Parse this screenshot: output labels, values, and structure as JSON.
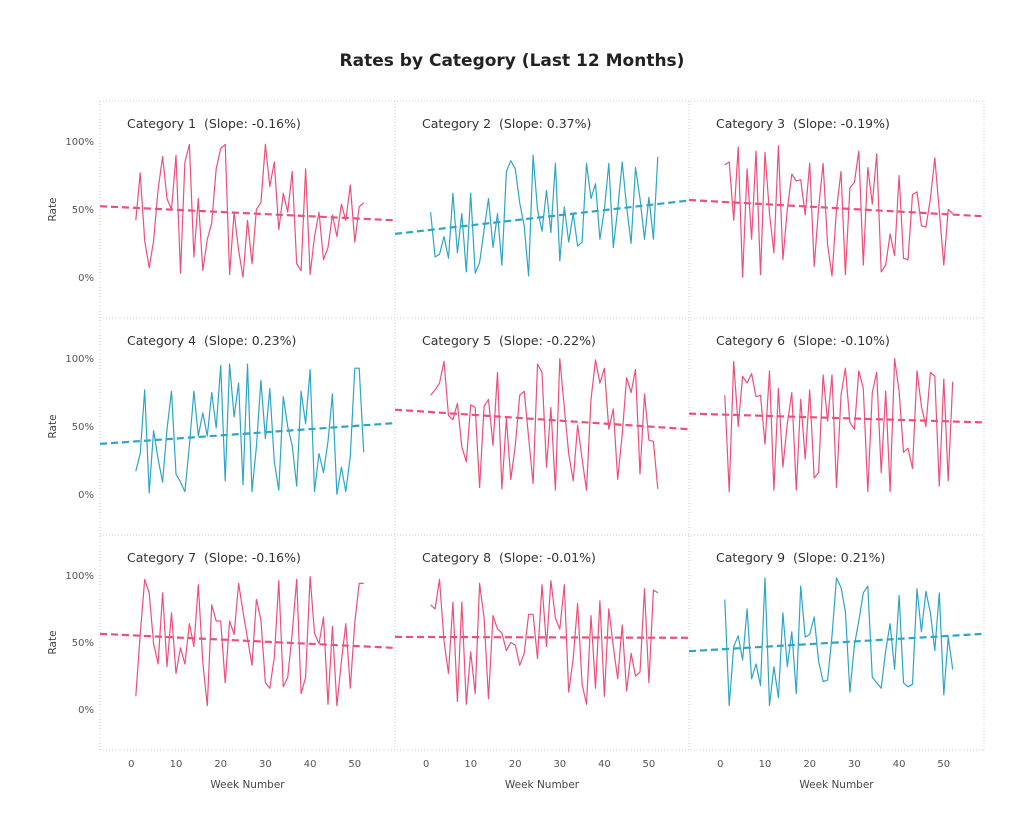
{
  "colors": {
    "negative": "#ee4f79",
    "positive": "#2ba6c8",
    "grid": "#cfcfcf"
  },
  "chart_data": {
    "type": "line",
    "title": "Rates by Category (Last 12 Months)",
    "xlabel": "Week Number",
    "ylabel": "Rate",
    "xlim": [
      -7,
      59
    ],
    "ylim": [
      -30,
      130
    ],
    "x_ticks": [
      0,
      10,
      20,
      30,
      40,
      50
    ],
    "y_ticks": [
      0,
      50,
      100
    ],
    "y_tick_labels": [
      "0%",
      "50%",
      "100%"
    ],
    "x_tick_labels": [
      "0",
      "10",
      "20",
      "30",
      "40",
      "50"
    ],
    "x": [
      1,
      2,
      3,
      4,
      5,
      6,
      7,
      8,
      9,
      10,
      11,
      12,
      13,
      14,
      15,
      16,
      17,
      18,
      19,
      20,
      21,
      22,
      23,
      24,
      25,
      26,
      27,
      28,
      29,
      30,
      31,
      32,
      33,
      34,
      35,
      36,
      37,
      38,
      39,
      40,
      41,
      42,
      43,
      44,
      45,
      46,
      47,
      48,
      49,
      50,
      51,
      52
    ],
    "panels": [
      {
        "label": "Category 1",
        "slope_label": "(Slope: -0.16%)",
        "trend": "negative",
        "values": [
          42,
          77,
          27,
          7,
          27,
          65,
          89,
          58,
          50,
          90,
          3,
          85,
          98,
          15,
          58,
          5,
          28,
          40,
          80,
          95,
          98,
          2,
          48,
          20,
          0,
          42,
          10,
          50,
          55,
          98,
          67,
          85,
          35,
          62,
          48,
          78,
          10,
          5,
          80,
          2,
          30,
          48,
          13,
          22,
          46,
          30,
          54,
          42,
          68,
          26,
          52,
          55
        ],
        "trend_line": {
          "x": [
            -7,
            59
          ],
          "y": [
            52.4,
            42
          ]
        }
      },
      {
        "label": "Category 2",
        "slope_label": "(Slope: 0.37%)",
        "trend": "positive",
        "values": [
          48,
          15,
          17,
          30,
          14,
          62,
          18,
          47,
          4,
          62,
          3,
          11,
          35,
          58,
          22,
          47,
          9,
          78,
          86,
          80,
          55,
          38,
          1,
          90,
          50,
          34,
          64,
          33,
          84,
          12,
          52,
          26,
          47,
          23,
          26,
          84,
          58,
          69,
          28,
          50,
          84,
          22,
          50,
          85,
          52,
          25,
          81,
          58,
          28,
          59,
          28,
          89
        ],
        "trend_line": {
          "x": [
            -7,
            59
          ],
          "y": [
            32,
            56.6
          ]
        }
      },
      {
        "label": "Category 3",
        "slope_label": "(Slope: -0.19%)",
        "trend": "negative",
        "values": [
          83,
          85,
          42,
          96,
          0,
          80,
          28,
          93,
          2,
          92,
          47,
          18,
          97,
          13,
          50,
          76,
          71,
          72,
          46,
          84,
          8,
          51,
          84,
          24,
          1,
          50,
          78,
          2,
          66,
          70,
          93,
          9,
          81,
          54,
          91,
          4,
          9,
          32,
          16,
          75,
          14,
          13,
          61,
          63,
          38,
          37,
          58,
          88,
          49,
          9,
          50,
          47
        ],
        "trend_line": {
          "x": [
            -7,
            59
          ],
          "y": [
            57,
            45
          ]
        }
      },
      {
        "label": "Category 4",
        "slope_label": "(Slope: 0.23%)",
        "trend": "positive",
        "values": [
          17,
          30,
          77,
          1,
          47,
          26,
          9,
          48,
          76,
          15,
          9,
          2,
          36,
          76,
          43,
          60,
          43,
          75,
          49,
          95,
          10,
          96,
          57,
          82,
          7,
          96,
          2,
          35,
          84,
          41,
          78,
          24,
          3,
          72,
          50,
          36,
          6,
          76,
          52,
          92,
          2,
          30,
          16,
          39,
          74,
          0,
          20,
          2,
          28,
          93,
          93,
          31
        ],
        "trend_line": {
          "x": [
            -7,
            59
          ],
          "y": [
            37.2,
            52.5
          ]
        }
      },
      {
        "label": "Category 5",
        "slope_label": "(Slope: -0.22%)",
        "trend": "negative",
        "values": [
          73,
          77,
          82,
          98,
          58,
          55,
          67,
          35,
          24,
          66,
          64,
          5,
          65,
          70,
          36,
          90,
          4,
          56,
          11,
          36,
          73,
          76,
          42,
          8,
          96,
          90,
          20,
          64,
          3,
          100,
          64,
          30,
          10,
          51,
          26,
          3,
          70,
          99,
          82,
          93,
          48,
          63,
          11,
          44,
          86,
          75,
          92,
          15,
          74,
          40,
          39,
          4
        ],
        "trend_line": {
          "x": [
            -7,
            59
          ],
          "y": [
            62.4,
            48
          ]
        }
      },
      {
        "label": "Category 6",
        "slope_label": "(Slope: -0.10%)",
        "trend": "negative",
        "values": [
          73,
          2,
          98,
          50,
          87,
          82,
          89,
          72,
          73,
          37,
          91,
          3,
          78,
          20,
          52,
          75,
          3,
          70,
          26,
          77,
          12,
          16,
          88,
          54,
          88,
          5,
          73,
          93,
          53,
          48,
          91,
          78,
          2,
          75,
          90,
          16,
          76,
          2,
          100,
          76,
          31,
          34,
          19,
          91,
          65,
          50,
          90,
          87,
          6,
          85,
          10,
          83
        ],
        "trend_line": {
          "x": [
            -7,
            59
          ],
          "y": [
            59.5,
            53
          ]
        }
      },
      {
        "label": "Category 7",
        "slope_label": "(Slope: -0.16%)",
        "trend": "negative",
        "values": [
          10,
          56,
          97,
          87,
          49,
          34,
          87,
          32,
          72,
          27,
          46,
          34,
          64,
          47,
          93,
          35,
          3,
          78,
          66,
          66,
          20,
          66,
          56,
          94,
          73,
          53,
          33,
          82,
          67,
          20,
          16,
          39,
          96,
          17,
          24,
          57,
          97,
          12,
          24,
          99,
          57,
          49,
          69,
          4,
          62,
          3,
          36,
          64,
          16,
          65,
          94,
          94
        ],
        "trend_line": {
          "x": [
            -7,
            59
          ],
          "y": [
            56.5,
            46
          ]
        }
      },
      {
        "label": "Category 8",
        "slope_label": "(Slope: -0.01%)",
        "trend": "negative",
        "values": [
          78,
          75,
          97,
          51,
          27,
          80,
          6,
          80,
          4,
          43,
          12,
          94,
          68,
          8,
          70,
          60,
          57,
          44,
          50,
          48,
          33,
          42,
          71,
          71,
          38,
          93,
          47,
          96,
          68,
          60,
          93,
          13,
          38,
          79,
          19,
          4,
          70,
          16,
          81,
          10,
          75,
          47,
          23,
          63,
          14,
          42,
          25,
          28,
          90,
          20,
          89,
          87
        ],
        "trend_line": {
          "x": [
            -7,
            59
          ],
          "y": [
            54.2,
            53.5
          ]
        }
      },
      {
        "label": "Category 9",
        "slope_label": "(Slope: 0.21%)",
        "trend": "positive",
        "values": [
          82,
          3,
          47,
          55,
          37,
          75,
          23,
          34,
          18,
          98,
          3,
          32,
          9,
          72,
          32,
          58,
          12,
          92,
          54,
          56,
          69,
          36,
          21,
          22,
          55,
          98,
          91,
          73,
          13,
          48,
          66,
          87,
          92,
          24,
          20,
          16,
          44,
          64,
          30,
          85,
          20,
          17,
          19,
          90,
          58,
          88,
          72,
          44,
          87,
          11,
          54,
          30
        ],
        "trend_line": {
          "x": [
            -7,
            59
          ],
          "y": [
            43.5,
            56.5
          ]
        }
      }
    ]
  }
}
